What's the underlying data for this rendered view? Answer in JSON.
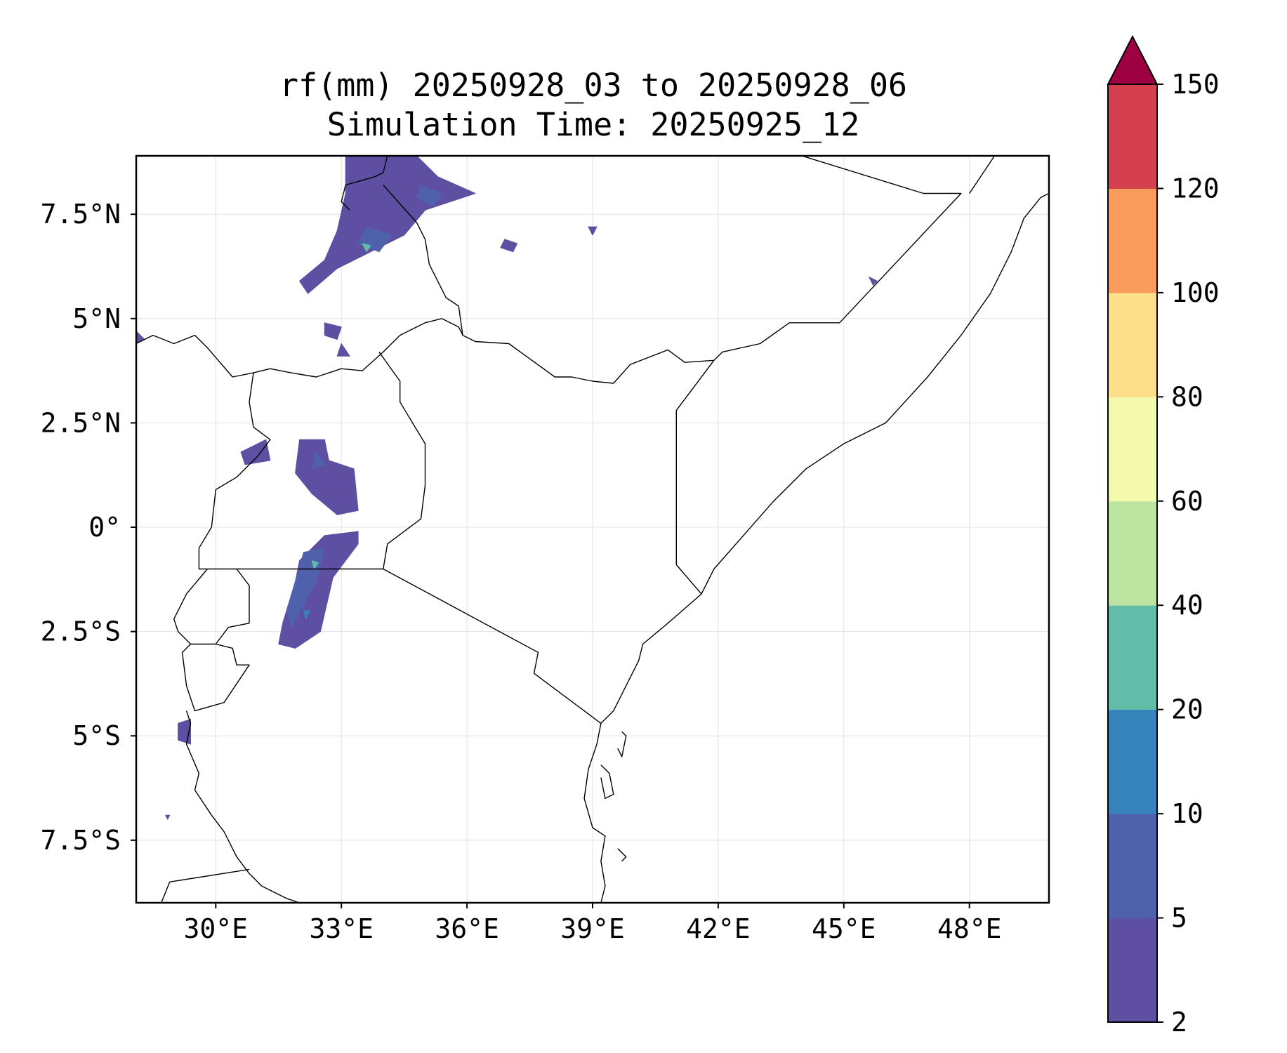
{
  "title": {
    "line1": "rf(mm) 20250928_03 to 20250928_06",
    "line2": "Simulation Time: 20250925_12"
  },
  "map": {
    "lon_range": [
      28.1,
      49.9
    ],
    "lat_range": [
      -9.0,
      8.9
    ],
    "lon_ticks": [
      {
        "value": 30,
        "label": "30°E"
      },
      {
        "value": 33,
        "label": "33°E"
      },
      {
        "value": 36,
        "label": "36°E"
      },
      {
        "value": 39,
        "label": "39°E"
      },
      {
        "value": 42,
        "label": "42°E"
      },
      {
        "value": 45,
        "label": "45°E"
      },
      {
        "value": 48,
        "label": "48°E"
      }
    ],
    "lat_ticks": [
      {
        "value": 7.5,
        "label": "7.5°N"
      },
      {
        "value": 5,
        "label": "5°N"
      },
      {
        "value": 2.5,
        "label": "2.5°N"
      },
      {
        "value": 0,
        "label": "0°"
      },
      {
        "value": -2.5,
        "label": "2.5°S"
      },
      {
        "value": -5,
        "label": "5°S"
      },
      {
        "value": -7.5,
        "label": "7.5°S"
      }
    ],
    "gridlines": true,
    "boundary_color": "#000000",
    "rain_areas": [
      {
        "name": "south-sudan-ethiopia-north",
        "level": 1,
        "pts": [
          [
            33.1,
            8.9
          ],
          [
            34.8,
            8.9
          ],
          [
            35.3,
            8.4
          ],
          [
            36.2,
            8.0
          ],
          [
            35.0,
            7.6
          ],
          [
            34.5,
            7.0
          ],
          [
            33.7,
            6.6
          ],
          [
            32.9,
            6.2
          ],
          [
            32.2,
            5.6
          ],
          [
            32.0,
            5.9
          ],
          [
            32.6,
            6.4
          ],
          [
            32.9,
            7.1
          ],
          [
            33.1,
            8.0
          ]
        ]
      },
      {
        "name": "north-core-a",
        "level": 2,
        "pts": [
          [
            33.6,
            7.2
          ],
          [
            34.2,
            7.0
          ],
          [
            33.9,
            6.6
          ],
          [
            33.4,
            6.8
          ]
        ]
      },
      {
        "name": "north-core-b",
        "level": 2,
        "pts": [
          [
            34.9,
            8.2
          ],
          [
            35.4,
            8.0
          ],
          [
            35.2,
            7.7
          ],
          [
            34.8,
            7.9
          ]
        ]
      },
      {
        "name": "north-core-peak",
        "level": 4,
        "pts": [
          [
            33.5,
            6.8
          ],
          [
            33.7,
            6.75
          ],
          [
            33.6,
            6.6
          ]
        ]
      },
      {
        "name": "south-sudan-east-cell",
        "level": 1,
        "pts": [
          [
            36.9,
            6.9
          ],
          [
            37.2,
            6.8
          ],
          [
            37.1,
            6.6
          ],
          [
            36.8,
            6.7
          ]
        ]
      },
      {
        "name": "ethiopia-small-cell",
        "level": 1,
        "pts": [
          [
            38.9,
            7.2
          ],
          [
            39.1,
            7.2
          ],
          [
            39.0,
            7.0
          ]
        ]
      },
      {
        "name": "somalia-small-cell",
        "level": 1,
        "pts": [
          [
            45.6,
            6.0
          ],
          [
            45.8,
            5.9
          ],
          [
            45.7,
            5.8
          ]
        ]
      },
      {
        "name": "uganda-north-cell",
        "level": 1,
        "pts": [
          [
            32.6,
            4.9
          ],
          [
            33.0,
            4.8
          ],
          [
            32.9,
            4.5
          ],
          [
            32.6,
            4.6
          ]
        ]
      },
      {
        "name": "uganda-north-cell-b",
        "level": 1,
        "pts": [
          [
            33.0,
            4.4
          ],
          [
            33.2,
            4.1
          ],
          [
            32.9,
            4.1
          ]
        ]
      },
      {
        "name": "drc-west-cell",
        "level": 1,
        "pts": [
          [
            28.1,
            4.7
          ],
          [
            28.3,
            4.5
          ],
          [
            28.1,
            4.4
          ]
        ]
      },
      {
        "name": "uganda-west-cell",
        "level": 1,
        "pts": [
          [
            30.6,
            1.8
          ],
          [
            31.2,
            2.1
          ],
          [
            31.3,
            1.6
          ],
          [
            30.7,
            1.5
          ]
        ]
      },
      {
        "name": "uganda-central",
        "level": 1,
        "pts": [
          [
            32.0,
            2.1
          ],
          [
            32.6,
            2.1
          ],
          [
            32.7,
            1.6
          ],
          [
            33.3,
            1.4
          ],
          [
            33.4,
            0.4
          ],
          [
            32.9,
            0.3
          ],
          [
            32.3,
            0.8
          ],
          [
            31.9,
            1.3
          ]
        ]
      },
      {
        "name": "uganda-central-core",
        "level": 2,
        "pts": [
          [
            32.4,
            1.8
          ],
          [
            32.6,
            1.5
          ],
          [
            32.3,
            1.4
          ]
        ]
      },
      {
        "name": "lake-victoria-west",
        "level": 1,
        "pts": [
          [
            32.0,
            -0.8
          ],
          [
            32.6,
            -0.2
          ],
          [
            33.4,
            -0.1
          ],
          [
            33.4,
            -0.4
          ],
          [
            32.8,
            -1.2
          ],
          [
            32.5,
            -2.5
          ],
          [
            31.9,
            -2.9
          ],
          [
            31.5,
            -2.8
          ],
          [
            31.6,
            -2.3
          ],
          [
            31.9,
            -1.3
          ]
        ]
      },
      {
        "name": "lake-victoria-core",
        "level": 2,
        "pts": [
          [
            32.1,
            -0.6
          ],
          [
            32.6,
            -0.5
          ],
          [
            32.4,
            -1.3
          ],
          [
            31.8,
            -2.4
          ],
          [
            31.7,
            -2.0
          ],
          [
            31.9,
            -1.3
          ]
        ]
      },
      {
        "name": "lake-victoria-peak",
        "level": 4,
        "pts": [
          [
            32.3,
            -0.8
          ],
          [
            32.45,
            -0.85
          ],
          [
            32.35,
            -1.0
          ]
        ]
      },
      {
        "name": "lake-victoria-peak-b",
        "level": 3,
        "pts": [
          [
            32.1,
            -2.0
          ],
          [
            32.25,
            -2.0
          ],
          [
            32.15,
            -2.2
          ]
        ]
      },
      {
        "name": "lake-tanganyika-cell",
        "level": 1,
        "pts": [
          [
            29.1,
            -4.7
          ],
          [
            29.4,
            -4.6
          ],
          [
            29.4,
            -5.2
          ],
          [
            29.1,
            -5.1
          ]
        ]
      },
      {
        "name": "tanzania-west-speck",
        "level": 1,
        "pts": [
          [
            28.8,
            -6.9
          ],
          [
            28.9,
            -6.9
          ],
          [
            28.85,
            -7.0
          ]
        ]
      }
    ],
    "boundaries": [
      {
        "name": "sudan-ethiopia",
        "pts": [
          [
            34.1,
            8.9
          ],
          [
            34.0,
            8.5
          ],
          [
            33.8,
            8.4
          ],
          [
            33.1,
            8.2
          ],
          [
            33.0,
            7.8
          ],
          [
            33.2,
            7.6
          ]
        ]
      },
      {
        "name": "ssd-eth",
        "pts": [
          [
            34.0,
            8.2
          ],
          [
            34.8,
            7.3
          ],
          [
            35.0,
            6.9
          ],
          [
            35.1,
            6.3
          ],
          [
            35.5,
            5.5
          ],
          [
            35.8,
            5.3
          ],
          [
            35.9,
            4.6
          ]
        ]
      },
      {
        "name": "ssd-uga-drc",
        "pts": [
          [
            28.1,
            4.4
          ],
          [
            28.5,
            4.6
          ],
          [
            29.0,
            4.4
          ],
          [
            29.5,
            4.6
          ],
          [
            29.8,
            4.3
          ],
          [
            30.4,
            3.6
          ],
          [
            30.9,
            3.7
          ],
          [
            31.3,
            3.8
          ],
          [
            31.8,
            3.7
          ],
          [
            32.4,
            3.6
          ],
          [
            33.0,
            3.8
          ],
          [
            33.5,
            3.75
          ],
          [
            34.0,
            4.2
          ],
          [
            34.4,
            4.6
          ],
          [
            35.0,
            4.9
          ],
          [
            35.4,
            5.0
          ]
        ]
      },
      {
        "name": "ssd-ilemi",
        "pts": [
          [
            35.4,
            5.0
          ],
          [
            35.8,
            4.8
          ],
          [
            35.9,
            4.6
          ],
          [
            36.2,
            4.45
          ],
          [
            37.0,
            4.4
          ],
          [
            38.1,
            3.6
          ],
          [
            38.5,
            3.6
          ],
          [
            39.0,
            3.5
          ],
          [
            39.5,
            3.45
          ],
          [
            39.9,
            3.9
          ],
          [
            40.8,
            4.25
          ],
          [
            41.2,
            3.95
          ],
          [
            41.9,
            4.0
          ]
        ]
      },
      {
        "name": "eth-som",
        "pts": [
          [
            41.9,
            4.0
          ],
          [
            42.1,
            4.2
          ],
          [
            43.0,
            4.4
          ],
          [
            43.7,
            4.9
          ],
          [
            44.9,
            4.9
          ],
          [
            47.8,
            8.0
          ],
          [
            46.9,
            8.0
          ],
          [
            44.0,
            8.9
          ]
        ]
      },
      {
        "name": "som-puntland",
        "pts": [
          [
            48.6,
            8.9
          ],
          [
            48.0,
            8.0
          ]
        ]
      },
      {
        "name": "ken-som",
        "pts": [
          [
            41.9,
            4.0
          ],
          [
            41.0,
            2.8
          ],
          [
            41.0,
            -0.9
          ],
          [
            41.6,
            -1.6
          ]
        ]
      },
      {
        "name": "uga-drc-west",
        "pts": [
          [
            30.9,
            3.7
          ],
          [
            30.8,
            3.0
          ],
          [
            30.9,
            2.4
          ],
          [
            31.3,
            2.1
          ],
          [
            31.0,
            1.7
          ],
          [
            30.5,
            1.2
          ],
          [
            30.0,
            0.9
          ],
          [
            29.9,
            0.0
          ],
          [
            29.6,
            -0.5
          ],
          [
            29.6,
            -1.0
          ],
          [
            29.8,
            -1.0
          ]
        ]
      },
      {
        "name": "uga-ken",
        "pts": [
          [
            33.9,
            4.2
          ],
          [
            34.4,
            3.5
          ],
          [
            34.4,
            3.0
          ],
          [
            35.0,
            2.0
          ],
          [
            35.0,
            1.0
          ],
          [
            34.9,
            0.2
          ],
          [
            34.1,
            -0.4
          ],
          [
            34.0,
            -1.0
          ]
        ]
      },
      {
        "name": "uga-tza",
        "pts": [
          [
            30.5,
            -1.0
          ],
          [
            34.0,
            -1.0
          ]
        ]
      },
      {
        "name": "ken-tza",
        "pts": [
          [
            34.0,
            -1.0
          ],
          [
            37.7,
            -3.0
          ],
          [
            37.6,
            -3.5
          ],
          [
            39.2,
            -4.7
          ]
        ]
      },
      {
        "name": "rwanda",
        "pts": [
          [
            29.8,
            -1.0
          ],
          [
            30.5,
            -1.0
          ],
          [
            30.8,
            -1.4
          ],
          [
            30.8,
            -2.3
          ],
          [
            30.3,
            -2.4
          ],
          [
            30.0,
            -2.8
          ],
          [
            29.4,
            -2.8
          ],
          [
            29.1,
            -2.5
          ],
          [
            29.0,
            -2.2
          ],
          [
            29.3,
            -1.6
          ],
          [
            29.8,
            -1.0
          ]
        ]
      },
      {
        "name": "burundi",
        "pts": [
          [
            30.0,
            -2.8
          ],
          [
            30.4,
            -2.9
          ],
          [
            30.5,
            -3.3
          ],
          [
            30.8,
            -3.3
          ],
          [
            30.2,
            -4.2
          ],
          [
            29.5,
            -4.4
          ],
          [
            29.3,
            -3.8
          ],
          [
            29.2,
            -3.0
          ],
          [
            29.4,
            -2.8
          ]
        ]
      },
      {
        "name": "drc-tza-lake",
        "pts": [
          [
            29.3,
            -4.4
          ],
          [
            29.4,
            -4.7
          ],
          [
            29.3,
            -5.2
          ],
          [
            29.6,
            -5.9
          ],
          [
            29.5,
            -6.3
          ],
          [
            29.9,
            -6.9
          ],
          [
            30.2,
            -7.3
          ],
          [
            30.5,
            -7.9
          ],
          [
            30.8,
            -8.3
          ],
          [
            31.1,
            -8.6
          ],
          [
            31.7,
            -8.9
          ],
          [
            32.0,
            -9.0
          ]
        ]
      },
      {
        "name": "zambia-drc",
        "pts": [
          [
            28.9,
            -8.5
          ],
          [
            30.8,
            -8.2
          ]
        ]
      },
      {
        "name": "zambia-drc-b",
        "pts": [
          [
            28.9,
            -8.5
          ],
          [
            28.7,
            -9.0
          ]
        ]
      }
    ],
    "coastlines": [
      {
        "name": "east-africa-coast",
        "pts": [
          [
            39.2,
            -9.0
          ],
          [
            39.3,
            -8.6
          ],
          [
            39.2,
            -8.0
          ],
          [
            39.3,
            -7.4
          ],
          [
            39.0,
            -7.2
          ],
          [
            38.8,
            -6.5
          ],
          [
            38.9,
            -5.8
          ],
          [
            39.1,
            -5.2
          ],
          [
            39.2,
            -4.7
          ],
          [
            39.5,
            -4.4
          ],
          [
            39.7,
            -4.0
          ],
          [
            40.1,
            -3.2
          ],
          [
            40.2,
            -2.8
          ],
          [
            40.8,
            -2.3
          ],
          [
            41.6,
            -1.6
          ],
          [
            41.9,
            -1.0
          ],
          [
            42.6,
            -0.2
          ],
          [
            43.3,
            0.6
          ],
          [
            44.1,
            1.4
          ],
          [
            45.0,
            2.0
          ],
          [
            46.0,
            2.5
          ],
          [
            47.0,
            3.6
          ],
          [
            47.8,
            4.6
          ],
          [
            48.5,
            5.6
          ],
          [
            49.0,
            6.6
          ],
          [
            49.3,
            7.4
          ],
          [
            49.7,
            7.9
          ],
          [
            49.9,
            8.0
          ]
        ]
      },
      {
        "name": "zanzibar",
        "pts": [
          [
            39.2,
            -5.7
          ],
          [
            39.4,
            -5.9
          ],
          [
            39.5,
            -6.4
          ],
          [
            39.3,
            -6.5
          ],
          [
            39.2,
            -6.0
          ]
        ]
      },
      {
        "name": "pemba",
        "pts": [
          [
            39.7,
            -4.9
          ],
          [
            39.8,
            -5.0
          ],
          [
            39.7,
            -5.5
          ],
          [
            39.6,
            -5.3
          ]
        ]
      },
      {
        "name": "mafia",
        "pts": [
          [
            39.6,
            -7.7
          ],
          [
            39.8,
            -7.9
          ],
          [
            39.7,
            -8.0
          ]
        ]
      }
    ]
  },
  "colorbar": {
    "levels": [
      "2",
      "5",
      "10",
      "20",
      "40",
      "60",
      "80",
      "100",
      "120",
      "150"
    ],
    "colors": [
      "#5e4fa2",
      "#4f61aa",
      "#3682ba",
      "#61bda8",
      "#bde3a1",
      "#f4faad",
      "#fddf8a",
      "#f99b5b",
      "#d54050"
    ],
    "extend_color": "#9e0142"
  }
}
